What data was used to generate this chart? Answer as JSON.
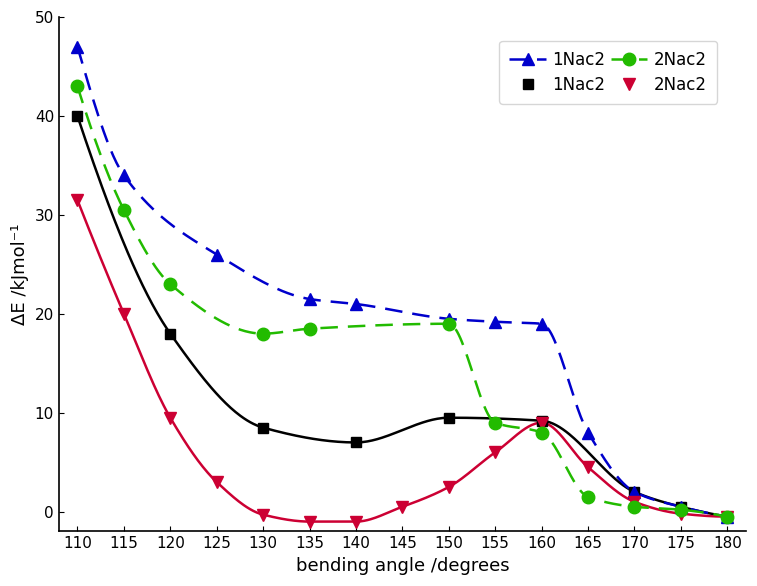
{
  "title": "",
  "xlabel": "bending angle /degrees",
  "ylabel": "ΔE /kJmol⁻¹",
  "xlim": [
    108,
    182
  ],
  "ylim": [
    -2,
    50
  ],
  "xticks": [
    110,
    115,
    120,
    125,
    130,
    135,
    140,
    145,
    150,
    155,
    160,
    165,
    170,
    175,
    180
  ],
  "yticks": [
    0,
    10,
    20,
    30,
    40,
    50
  ],
  "black_x": [
    110,
    120,
    130,
    140,
    150,
    160,
    170,
    175,
    180
  ],
  "black_y": [
    40.0,
    18.0,
    8.5,
    7.0,
    9.5,
    9.2,
    2.0,
    0.5,
    -0.5
  ],
  "blue_x": [
    110,
    115,
    125,
    135,
    140,
    150,
    155,
    160,
    165,
    170,
    175,
    180
  ],
  "blue_y": [
    47.0,
    34.0,
    26.0,
    21.5,
    21.0,
    19.5,
    19.2,
    19.0,
    8.0,
    2.0,
    0.5,
    -0.5
  ],
  "red_x": [
    110,
    115,
    120,
    125,
    130,
    135,
    140,
    145,
    150,
    155,
    160,
    165,
    170,
    175,
    180
  ],
  "red_y": [
    31.5,
    20.0,
    9.5,
    3.0,
    -0.3,
    -1.0,
    -1.0,
    0.5,
    2.5,
    6.0,
    9.0,
    4.5,
    1.0,
    -0.2,
    -0.5
  ],
  "green_x": [
    110,
    115,
    120,
    130,
    135,
    150,
    155,
    160,
    165,
    170,
    175,
    180
  ],
  "green_y": [
    43.0,
    30.5,
    23.0,
    18.0,
    18.5,
    19.0,
    9.0,
    8.0,
    1.5,
    0.5,
    0.2,
    -0.5
  ],
  "legend_label_1nac2": "1Nac2",
  "legend_label_2nac2": "2Nac2",
  "black_color": "#000000",
  "blue_color": "#0000cc",
  "red_color": "#cc0033",
  "green_color": "#22bb00",
  "background_color": "#ffffff"
}
